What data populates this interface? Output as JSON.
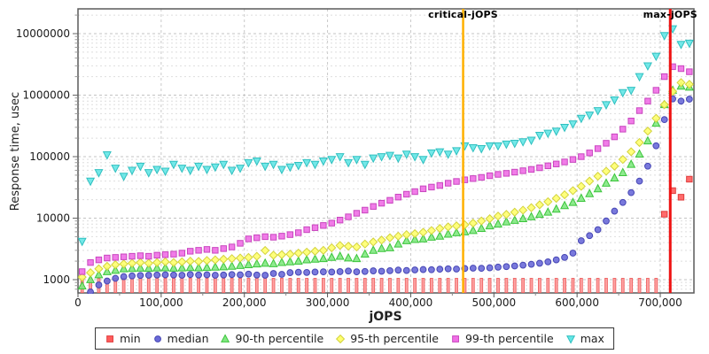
{
  "chart_data": {
    "type": "scatter",
    "title": "",
    "xlabel": "jOPS",
    "ylabel": "Response time, usec",
    "x_axis": {
      "min": 0,
      "max": 740000,
      "grid": true,
      "ticks": [
        {
          "v": 0,
          "label": "0"
        },
        {
          "v": 100000,
          "label": "100,000"
        },
        {
          "v": 200000,
          "label": "200,000"
        },
        {
          "v": 300000,
          "label": "300,000"
        },
        {
          "v": 400000,
          "label": "400,000"
        },
        {
          "v": 500000,
          "label": "500,000"
        },
        {
          "v": 600000,
          "label": "600,000"
        },
        {
          "v": 700000,
          "label": "700,000"
        }
      ]
    },
    "y_axis": {
      "scale": "log",
      "min": 610,
      "max": 25000000,
      "grid": true,
      "ticks": [
        {
          "v": 1000,
          "label": "1000"
        },
        {
          "v": 10000,
          "label": "10000"
        },
        {
          "v": 100000,
          "label": "100000"
        },
        {
          "v": 1000000,
          "label": "1000000"
        },
        {
          "v": 10000000,
          "label": "10000000"
        }
      ]
    },
    "annotations": [
      {
        "label": "critical-jOPS",
        "x": 463000,
        "color": "#ffb000",
        "width": 2.5
      },
      {
        "label": "max-jOPS",
        "x": 712000,
        "color": "#ee1111",
        "width": 3
      }
    ],
    "legend_position": "bottom",
    "x_jops": [
      5000,
      15000,
      25000,
      35000,
      45000,
      55000,
      65000,
      75000,
      85000,
      95000,
      105000,
      115000,
      125000,
      135000,
      145000,
      155000,
      165000,
      175000,
      185000,
      195000,
      205000,
      215000,
      225000,
      235000,
      245000,
      255000,
      265000,
      275000,
      285000,
      295000,
      305000,
      315000,
      325000,
      335000,
      345000,
      355000,
      365000,
      375000,
      385000,
      395000,
      405000,
      415000,
      425000,
      435000,
      445000,
      455000,
      465000,
      475000,
      485000,
      495000,
      505000,
      515000,
      525000,
      535000,
      545000,
      555000,
      565000,
      575000,
      585000,
      595000,
      605000,
      615000,
      625000,
      635000,
      645000,
      655000,
      665000,
      675000,
      685000,
      695000,
      705000,
      715000,
      725000,
      735000
    ],
    "series": [
      {
        "name": "min",
        "marker": "square",
        "color": "#ff5c5c",
        "stroke": "#e03c3c",
        "values": [
          500,
          500,
          500,
          500,
          500,
          500,
          500,
          500,
          500,
          500,
          500,
          500,
          500,
          500,
          500,
          500,
          500,
          500,
          500,
          500,
          500,
          500,
          500,
          500,
          500,
          500,
          500,
          500,
          500,
          500,
          500,
          500,
          500,
          500,
          500,
          500,
          500,
          500,
          500,
          500,
          500,
          500,
          500,
          500,
          500,
          500,
          500,
          500,
          500,
          500,
          500,
          500,
          500,
          500,
          500,
          500,
          500,
          500,
          500,
          500,
          500,
          500,
          500,
          500,
          500,
          500,
          500,
          500,
          500,
          500,
          11600,
          28000,
          21900,
          43000
        ]
      },
      {
        "name": "median",
        "marker": "circle",
        "color": "#6a6ad8",
        "stroke": "#4646b4",
        "values": [
          null,
          630,
          820,
          950,
          1050,
          1120,
          1150,
          1170,
          1180,
          1190,
          1200,
          1190,
          1180,
          1210,
          1190,
          1200,
          1180,
          1190,
          1210,
          1200,
          1230,
          1190,
          1180,
          1260,
          1220,
          1300,
          1320,
          1310,
          1330,
          1340,
          1330,
          1350,
          1380,
          1340,
          1360,
          1390,
          1370,
          1400,
          1430,
          1410,
          1440,
          1460,
          1450,
          1480,
          1500,
          1490,
          1520,
          1540,
          1530,
          1560,
          1600,
          1630,
          1670,
          1720,
          1780,
          1850,
          1950,
          2100,
          2300,
          2700,
          4300,
          5200,
          6500,
          9000,
          13000,
          18000,
          26000,
          40000,
          70000,
          150000,
          400000,
          870000,
          800000,
          860000
        ]
      },
      {
        "name": "90-th percentile",
        "marker": "triangle-up",
        "color": "#82e882",
        "stroke": "#3cc53c",
        "values": [
          790,
          1000,
          1200,
          1350,
          1420,
          1500,
          1520,
          1540,
          1530,
          1550,
          1560,
          1540,
          1550,
          1570,
          1560,
          1580,
          1600,
          1620,
          1650,
          1700,
          1750,
          1800,
          1850,
          1820,
          1900,
          1950,
          2000,
          2100,
          2150,
          2200,
          2300,
          2400,
          2250,
          2200,
          2600,
          3000,
          3200,
          3300,
          3800,
          4300,
          4500,
          4600,
          4900,
          5100,
          5500,
          5800,
          6000,
          6300,
          6800,
          7500,
          8000,
          8700,
          9200,
          9800,
          10500,
          11500,
          12500,
          14000,
          16000,
          18000,
          21000,
          25000,
          30000,
          37000,
          45000,
          55000,
          75000,
          110000,
          180000,
          350000,
          700000,
          1200000,
          1400000,
          1350000
        ]
      },
      {
        "name": "95-th percentile",
        "marker": "diamond",
        "color": "#ffff6e",
        "stroke": "#d2d23c",
        "values": [
          1100,
          1300,
          1500,
          1650,
          1750,
          1800,
          1850,
          1900,
          1850,
          1900,
          1950,
          1900,
          1950,
          2000,
          1980,
          2050,
          2100,
          2150,
          2200,
          2250,
          2300,
          2400,
          2980,
          2500,
          2550,
          2600,
          2700,
          2800,
          2900,
          3000,
          3300,
          3600,
          3500,
          3400,
          3800,
          4100,
          4400,
          4800,
          5100,
          5400,
          5600,
          5900,
          6300,
          6800,
          7200,
          7500,
          7800,
          8300,
          9000,
          9800,
          10800,
          11500,
          12500,
          13500,
          14800,
          16500,
          18500,
          21000,
          24000,
          28000,
          33000,
          40000,
          48000,
          58000,
          70000,
          90000,
          120000,
          170000,
          260000,
          420000,
          700000,
          1150000,
          1600000,
          1500000
        ]
      },
      {
        "name": "99-th percentile",
        "marker": "square",
        "color": "#f06ee6",
        "stroke": "#c846be",
        "values": [
          1350,
          1900,
          2100,
          2250,
          2300,
          2350,
          2400,
          2450,
          2400,
          2500,
          2550,
          2600,
          2700,
          2900,
          3000,
          3100,
          3000,
          3200,
          3400,
          3900,
          4600,
          4800,
          5000,
          4900,
          5100,
          5400,
          5800,
          6500,
          7000,
          7600,
          8300,
          9300,
          10500,
          12000,
          13500,
          15500,
          17500,
          19500,
          22000,
          24500,
          27000,
          30000,
          32000,
          34000,
          37000,
          39500,
          42000,
          44000,
          46000,
          49000,
          51500,
          53500,
          56000,
          59000,
          62000,
          66000,
          71000,
          76000,
          82000,
          90000,
          100000,
          115000,
          135000,
          165000,
          210000,
          280000,
          380000,
          560000,
          800000,
          1200000,
          2000000,
          2900000,
          2700000,
          2400000
        ]
      },
      {
        "name": "max",
        "marker": "triangle-down",
        "color": "#64e6e6",
        "stroke": "#30c0c0",
        "values": [
          4200,
          40000,
          55000,
          107000,
          65000,
          48000,
          60000,
          70000,
          55000,
          62000,
          58000,
          75000,
          65000,
          60000,
          70000,
          62000,
          68000,
          75000,
          60000,
          65000,
          80000,
          85000,
          70000,
          75000,
          62000,
          68000,
          72000,
          80000,
          75000,
          85000,
          90000,
          100000,
          80000,
          90000,
          75000,
          95000,
          100000,
          105000,
          95000,
          110000,
          100000,
          90000,
          115000,
          120000,
          110000,
          125000,
          150000,
          140000,
          135000,
          150000,
          150000,
          160000,
          165000,
          175000,
          185000,
          222000,
          240000,
          260000,
          300000,
          340000,
          420000,
          475000,
          560000,
          700000,
          835000,
          1100000,
          1200000,
          2000000,
          3000000,
          4300000,
          9300000,
          12000000,
          6700000,
          7000000
        ]
      }
    ]
  }
}
